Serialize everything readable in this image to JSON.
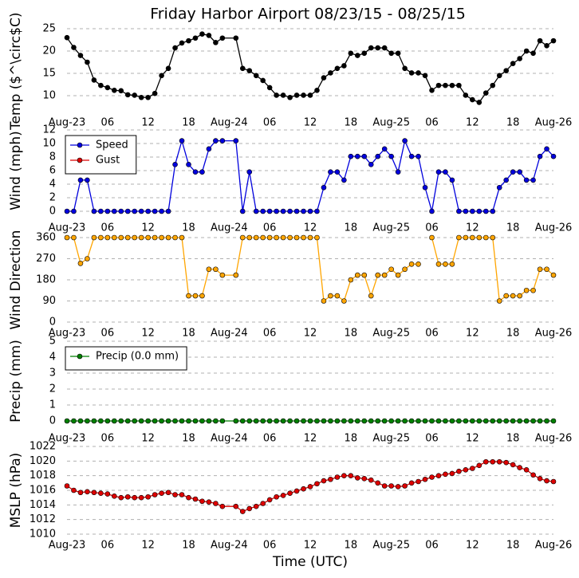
{
  "chart_data": [
    {
      "type": "line",
      "title": "Friday Harbor Airport 08/23/15 - 08/25/15",
      "ylabel": "Temp ($^\\circ$C)",
      "x": [
        0,
        1,
        2,
        3,
        4,
        5,
        6,
        7,
        8,
        9,
        10,
        11,
        12,
        13,
        14,
        15,
        16,
        17,
        18,
        19,
        20,
        21,
        22,
        23,
        25,
        26,
        27,
        28,
        29,
        30,
        31,
        32,
        33,
        34,
        35,
        36,
        37,
        38,
        39,
        40,
        41,
        42,
        43,
        44,
        45,
        46,
        47,
        48,
        49,
        50,
        51,
        52,
        53,
        54,
        55,
        56,
        57,
        58,
        59,
        60,
        61,
        62,
        63,
        64,
        65,
        66,
        67,
        68,
        69,
        70,
        71,
        72
      ],
      "xlim": [
        0,
        72
      ],
      "xticks": [
        {
          "value": 0,
          "label": "Aug-23"
        },
        {
          "value": 6,
          "label": "06"
        },
        {
          "value": 12,
          "label": "12"
        },
        {
          "value": 18,
          "label": "18"
        },
        {
          "value": 24,
          "label": "Aug-24"
        },
        {
          "value": 30,
          "label": "06"
        },
        {
          "value": 36,
          "label": "12"
        },
        {
          "value": 42,
          "label": "18"
        },
        {
          "value": 48,
          "label": "Aug-25"
        },
        {
          "value": 54,
          "label": "06"
        },
        {
          "value": 60,
          "label": "12"
        },
        {
          "value": 66,
          "label": "18"
        },
        {
          "value": 72,
          "label": "Aug-26"
        }
      ],
      "ylim": [
        6,
        25
      ],
      "yticks": [
        10,
        15,
        20,
        25
      ],
      "grid": true,
      "series": [
        {
          "color": "#000000",
          "values": [
            23,
            20.8,
            19,
            17.5,
            13.5,
            12.3,
            11.8,
            11.2,
            11.1,
            10.2,
            10.1,
            9.6,
            9.6,
            10.5,
            14.5,
            16.1,
            20.7,
            21.8,
            22.3,
            22.9,
            23.8,
            23.5,
            21.9,
            22.9,
            22.9,
            16.1,
            15.6,
            14.5,
            13.4,
            11.8,
            10.1,
            10.1,
            9.6,
            10.1,
            10.1,
            10.1,
            11.2,
            14,
            15.1,
            16.1,
            16.7,
            19.5,
            19,
            19.5,
            20.7,
            20.7,
            20.7,
            19.5,
            19.5,
            16.1,
            15.1,
            15.1,
            14.5,
            11.2,
            12.3,
            12.3,
            12.3,
            12.3,
            10.1,
            9.1,
            8.5,
            10.6,
            12.3,
            14.5,
            15.6,
            17.2,
            18.3,
            20,
            19.5,
            22.3,
            21.2,
            22.3
          ]
        }
      ]
    },
    {
      "type": "line",
      "ylabel": "Wind (mph)",
      "legend": "upper left",
      "x": [
        0,
        1,
        2,
        3,
        4,
        5,
        6,
        7,
        8,
        9,
        10,
        11,
        12,
        13,
        14,
        15,
        16,
        17,
        18,
        19,
        20,
        21,
        22,
        23,
        25,
        26,
        27,
        28,
        29,
        30,
        31,
        32,
        33,
        34,
        35,
        36,
        37,
        38,
        39,
        40,
        41,
        42,
        43,
        44,
        45,
        46,
        47,
        48,
        49,
        50,
        51,
        52,
        53,
        54,
        55,
        56,
        57,
        58,
        59,
        60,
        61,
        62,
        63,
        64,
        65,
        66,
        67,
        68,
        69,
        70,
        71,
        72
      ],
      "xlim": [
        0,
        72
      ],
      "xticks": [
        {
          "value": 0,
          "label": "Aug-23"
        },
        {
          "value": 6,
          "label": "06"
        },
        {
          "value": 12,
          "label": "12"
        },
        {
          "value": 18,
          "label": "18"
        },
        {
          "value": 24,
          "label": "Aug-24"
        },
        {
          "value": 30,
          "label": "06"
        },
        {
          "value": 36,
          "label": "12"
        },
        {
          "value": 42,
          "label": "18"
        },
        {
          "value": 48,
          "label": "Aug-25"
        },
        {
          "value": 54,
          "label": "06"
        },
        {
          "value": 60,
          "label": "12"
        },
        {
          "value": 66,
          "label": "18"
        },
        {
          "value": 72,
          "label": "Aug-26"
        }
      ],
      "ylim": [
        0,
        12
      ],
      "yticks": [
        0,
        2,
        4,
        6,
        8,
        10,
        12
      ],
      "grid": true,
      "series": [
        {
          "name": "Speed",
          "color": "#0000dd",
          "values": [
            0,
            0,
            4.6,
            4.6,
            0,
            0,
            0,
            0,
            0,
            0,
            0,
            0,
            0,
            0,
            0,
            0,
            6.9,
            10.4,
            6.9,
            5.8,
            5.8,
            9.2,
            10.4,
            10.4,
            10.4,
            0,
            5.8,
            0,
            0,
            0,
            0,
            0,
            0,
            0,
            0,
            0,
            0,
            3.5,
            5.8,
            5.8,
            4.6,
            8.1,
            8.1,
            8.1,
            6.9,
            8.1,
            9.2,
            8.1,
            5.8,
            10.4,
            8.1,
            8.1,
            3.5,
            0,
            5.8,
            5.8,
            4.6,
            0,
            0,
            0,
            0,
            0,
            0,
            3.5,
            4.6,
            5.8,
            5.8,
            4.6,
            4.6,
            8.1,
            9.2,
            8.1
          ]
        },
        {
          "name": "Gust",
          "color": "#dd0000",
          "values": [
            null,
            null,
            null,
            null,
            null,
            null,
            null,
            null,
            null,
            null,
            null,
            null,
            null,
            null,
            null,
            null,
            null,
            null,
            null,
            null,
            null,
            null,
            null,
            null,
            null,
            null,
            null,
            null,
            null,
            null,
            null,
            null,
            null,
            null,
            null,
            null,
            null,
            null,
            null,
            null,
            null,
            null,
            null,
            null,
            null,
            null,
            null,
            null,
            null,
            null,
            null,
            null,
            null,
            null,
            null,
            null,
            null,
            null,
            null,
            null,
            null,
            null,
            null,
            null,
            null,
            null,
            null,
            null,
            null,
            null,
            null,
            null
          ]
        }
      ]
    },
    {
      "type": "line",
      "ylabel": "Wind Direction",
      "x": [
        0,
        1,
        2,
        3,
        4,
        5,
        6,
        7,
        8,
        9,
        10,
        11,
        12,
        13,
        14,
        15,
        16,
        17,
        18,
        19,
        20,
        21,
        22,
        23,
        25,
        26,
        27,
        28,
        29,
        30,
        31,
        32,
        33,
        34,
        35,
        36,
        37,
        38,
        39,
        40,
        41,
        42,
        43,
        44,
        45,
        46,
        47,
        48,
        49,
        50,
        51,
        52,
        53,
        54,
        55,
        56,
        57,
        58,
        59,
        60,
        61,
        62,
        63,
        64,
        65,
        66,
        67,
        68,
        69,
        70,
        71,
        72
      ],
      "xlim": [
        0,
        72
      ],
      "xticks": [
        {
          "value": 0,
          "label": "Aug-23"
        },
        {
          "value": 6,
          "label": "06"
        },
        {
          "value": 12,
          "label": "12"
        },
        {
          "value": 18,
          "label": "18"
        },
        {
          "value": 24,
          "label": "Aug-24"
        },
        {
          "value": 30,
          "label": "06"
        },
        {
          "value": 36,
          "label": "12"
        },
        {
          "value": 42,
          "label": "18"
        },
        {
          "value": 48,
          "label": "Aug-25"
        },
        {
          "value": 54,
          "label": "06"
        },
        {
          "value": 60,
          "label": "12"
        },
        {
          "value": 66,
          "label": "18"
        },
        {
          "value": 72,
          "label": "Aug-26"
        }
      ],
      "ylim": [
        0,
        360
      ],
      "yticks": [
        0,
        90,
        180,
        270,
        360
      ],
      "grid": true,
      "series": [
        {
          "color": "#ffa500",
          "values": [
            360,
            360,
            250,
            270,
            360,
            360,
            360,
            360,
            360,
            360,
            360,
            360,
            360,
            360,
            360,
            360,
            360,
            360,
            112,
            112,
            112,
            225,
            225,
            200,
            200,
            360,
            360,
            360,
            360,
            360,
            360,
            360,
            360,
            360,
            360,
            360,
            360,
            90,
            112,
            112,
            90,
            180,
            200,
            200,
            112,
            200,
            200,
            225,
            200,
            225,
            247,
            247,
            null,
            360,
            247,
            247,
            247,
            360,
            360,
            360,
            360,
            360,
            360,
            90,
            112,
            112,
            112,
            135,
            135,
            225,
            225,
            200
          ]
        }
      ]
    },
    {
      "type": "line",
      "ylabel": "Precip (mm)",
      "legend": "upper left",
      "x": [
        0,
        1,
        2,
        3,
        4,
        5,
        6,
        7,
        8,
        9,
        10,
        11,
        12,
        13,
        14,
        15,
        16,
        17,
        18,
        19,
        20,
        21,
        22,
        23,
        25,
        26,
        27,
        28,
        29,
        30,
        31,
        32,
        33,
        34,
        35,
        36,
        37,
        38,
        39,
        40,
        41,
        42,
        43,
        44,
        45,
        46,
        47,
        48,
        49,
        50,
        51,
        52,
        53,
        54,
        55,
        56,
        57,
        58,
        59,
        60,
        61,
        62,
        63,
        64,
        65,
        66,
        67,
        68,
        69,
        70,
        71,
        72
      ],
      "xlim": [
        0,
        72
      ],
      "xticks": [
        {
          "value": 0,
          "label": "Aug-23"
        },
        {
          "value": 6,
          "label": "06"
        },
        {
          "value": 12,
          "label": "12"
        },
        {
          "value": 18,
          "label": "18"
        },
        {
          "value": 24,
          "label": "Aug-24"
        },
        {
          "value": 30,
          "label": "06"
        },
        {
          "value": 36,
          "label": "12"
        },
        {
          "value": 42,
          "label": "18"
        },
        {
          "value": 48,
          "label": "Aug-25"
        },
        {
          "value": 54,
          "label": "06"
        },
        {
          "value": 60,
          "label": "12"
        },
        {
          "value": 66,
          "label": "18"
        },
        {
          "value": 72,
          "label": "Aug-26"
        }
      ],
      "ylim": [
        0,
        5
      ],
      "yticks": [
        0,
        1,
        2,
        3,
        4,
        5
      ],
      "grid": true,
      "series": [
        {
          "name": "Precip (0.0 mm)",
          "color": "#007f00",
          "values": [
            0,
            0,
            0,
            0,
            0,
            0,
            0,
            0,
            0,
            0,
            0,
            0,
            0,
            0,
            0,
            0,
            0,
            0,
            0,
            0,
            0,
            0,
            0,
            0,
            0,
            0,
            0,
            0,
            0,
            0,
            0,
            0,
            0,
            0,
            0,
            0,
            0,
            0,
            0,
            0,
            0,
            0,
            0,
            0,
            0,
            0,
            0,
            0,
            0,
            0,
            0,
            0,
            0,
            0,
            0,
            0,
            0,
            0,
            0,
            0,
            0,
            0,
            0,
            0,
            0,
            0,
            0,
            0,
            0,
            0,
            0,
            0
          ]
        }
      ]
    },
    {
      "type": "line",
      "ylabel": "MSLP (hPa)",
      "xlabel": "Time (UTC)",
      "x": [
        0,
        1,
        2,
        3,
        4,
        5,
        6,
        7,
        8,
        9,
        10,
        11,
        12,
        13,
        14,
        15,
        16,
        17,
        18,
        19,
        20,
        21,
        22,
        23,
        25,
        26,
        27,
        28,
        29,
        30,
        31,
        32,
        33,
        34,
        35,
        36,
        37,
        38,
        39,
        40,
        41,
        42,
        43,
        44,
        45,
        46,
        47,
        48,
        49,
        50,
        51,
        52,
        53,
        54,
        55,
        56,
        57,
        58,
        59,
        60,
        61,
        62,
        63,
        64,
        65,
        66,
        67,
        68,
        69,
        70,
        71,
        72
      ],
      "xlim": [
        0,
        72
      ],
      "xticks": [
        {
          "value": 0,
          "label": "Aug-23"
        },
        {
          "value": 6,
          "label": "06"
        },
        {
          "value": 12,
          "label": "12"
        },
        {
          "value": 18,
          "label": "18"
        },
        {
          "value": 24,
          "label": "Aug-24"
        },
        {
          "value": 30,
          "label": "06"
        },
        {
          "value": 36,
          "label": "12"
        },
        {
          "value": 42,
          "label": "18"
        },
        {
          "value": 48,
          "label": "Aug-25"
        },
        {
          "value": 54,
          "label": "06"
        },
        {
          "value": 60,
          "label": "12"
        },
        {
          "value": 66,
          "label": "18"
        },
        {
          "value": 72,
          "label": "Aug-26"
        }
      ],
      "ylim": [
        1010,
        1022
      ],
      "yticks": [
        1010,
        1012,
        1014,
        1016,
        1018,
        1020,
        1022
      ],
      "grid": true,
      "series": [
        {
          "color": "#dd0000",
          "values": [
            1016.6,
            1016,
            1015.7,
            1015.8,
            1015.7,
            1015.6,
            1015.5,
            1015.2,
            1015,
            1015.1,
            1015,
            1015,
            1015.1,
            1015.4,
            1015.6,
            1015.7,
            1015.4,
            1015.4,
            1015,
            1014.8,
            1014.5,
            1014.4,
            1014.2,
            1013.8,
            1013.8,
            1013.1,
            1013.5,
            1013.8,
            1014.2,
            1014.7,
            1015.1,
            1015.3,
            1015.6,
            1015.9,
            1016.2,
            1016.5,
            1016.9,
            1017.3,
            1017.5,
            1017.8,
            1018,
            1018,
            1017.7,
            1017.6,
            1017.4,
            1017,
            1016.6,
            1016.6,
            1016.5,
            1016.6,
            1017,
            1017.2,
            1017.5,
            1017.8,
            1018,
            1018.2,
            1018.3,
            1018.6,
            1018.8,
            1019,
            1019.4,
            1019.9,
            1019.9,
            1019.9,
            1019.8,
            1019.5,
            1019.1,
            1018.8,
            1018.1,
            1017.6,
            1017.3,
            1017.2
          ]
        }
      ]
    }
  ]
}
